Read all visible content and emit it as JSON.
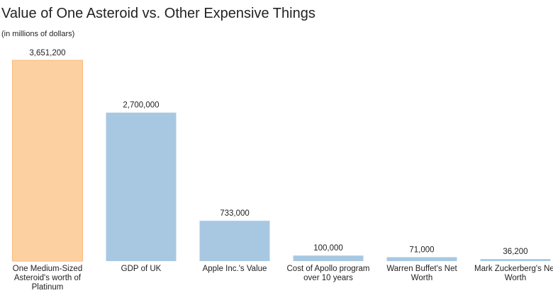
{
  "chart_data": {
    "type": "bar",
    "title": "Value of One Asteroid vs. Other Expensive Things",
    "subtitle": "(in millions of dollars)",
    "categories": [
      "One Medium-Sized Asteroid's worth of Platinum",
      "GDP of UK",
      "Apple Inc.'s Value",
      "Cost of Apollo program over 10 years",
      "Warren Buffet's Net Worth",
      "Mark Zuckerberg's Net Worth"
    ],
    "values": [
      3651200,
      2700000,
      733000,
      100000,
      71000,
      36200
    ],
    "value_labels": [
      "3,651,200",
      "2,700,000",
      "733,000",
      "100,000",
      "71,000",
      "36,200"
    ],
    "colors": [
      "#fdd0a2",
      "#a8c8e2",
      "#a8c8e2",
      "#a8c8e2",
      "#a8c8e2",
      "#a8c8e2"
    ]
  }
}
